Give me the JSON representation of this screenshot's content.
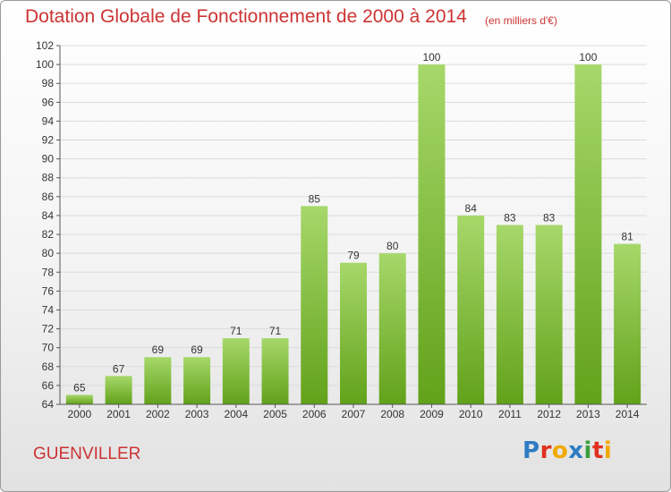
{
  "header": {
    "title": "Dotation Globale de Fonctionnement de 2000 à 2014",
    "unit_note": "(en milliers d'€)"
  },
  "footer": {
    "place": "GUENVILLER",
    "brand": "Proxiti",
    "brand_colors": [
      "#2e7cc4",
      "#e0301e",
      "#f2a900",
      "#2e7cc4",
      "#3aa03a",
      "#e0301e",
      "#f2a900"
    ]
  },
  "colors": {
    "title": "#cc3333",
    "bar_light": "#a6d86a",
    "bar_dark": "#62a21a",
    "grid": "#dcdcdc"
  },
  "chart_data": {
    "type": "bar",
    "categories": [
      "2000",
      "2001",
      "2002",
      "2003",
      "2004",
      "2005",
      "2006",
      "2007",
      "2008",
      "2009",
      "2010",
      "2011",
      "2012",
      "2013",
      "2014"
    ],
    "values": [
      65,
      67,
      69,
      69,
      71,
      71,
      85,
      79,
      80,
      100,
      84,
      83,
      83,
      100,
      81
    ],
    "data_labels": [
      "65",
      "67",
      "69",
      "69",
      "71",
      "71",
      "85",
      "79",
      "80",
      "100",
      "84",
      "83",
      "83",
      "100",
      "81"
    ],
    "ylim": [
      64,
      102
    ],
    "yticks": [
      64,
      66,
      68,
      70,
      72,
      74,
      76,
      78,
      80,
      82,
      84,
      86,
      88,
      90,
      92,
      94,
      96,
      98,
      100,
      102
    ],
    "title": "Dotation Globale de Fonctionnement de 2000 à 2014",
    "xlabel": "",
    "ylabel": "",
    "grid": true,
    "legend": "none"
  }
}
